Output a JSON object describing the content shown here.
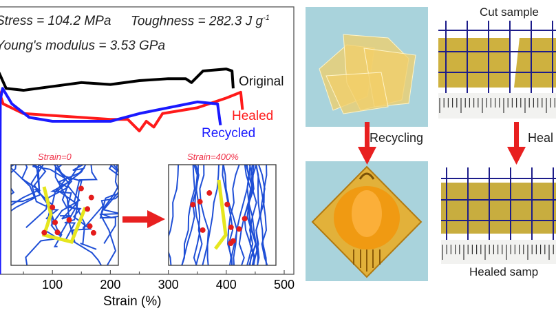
{
  "chart_data": {
    "type": "line",
    "xlabel": "Strain (%)",
    "ylabel": "",
    "xlim": [
      0,
      500
    ],
    "x_ticks": [
      100,
      200,
      300,
      400,
      500
    ],
    "grid": false,
    "annotations": {
      "stress": "Stress = 104.2 MPa",
      "toughness": "Toughness = 282.3 J g",
      "toughness_sup": "-1",
      "modulus": "Young's modulus = 3.53 GPa"
    },
    "series": [
      {
        "name": "Original",
        "color": "#000000",
        "x": [
          0,
          3,
          8,
          20,
          50,
          100,
          150,
          200,
          250,
          300,
          330,
          340,
          360,
          400,
          410,
          412
        ],
        "y": [
          0,
          100,
          104,
          96,
          95,
          97,
          99,
          98,
          100,
          101,
          101,
          99,
          105,
          106,
          105,
          96
        ]
      },
      {
        "name": "Healed",
        "color": "#ff1a1a",
        "x": [
          0,
          3,
          5,
          15,
          50,
          100,
          200,
          230,
          250,
          262,
          275,
          290,
          350,
          400,
          425,
          428
        ],
        "y": [
          0,
          92,
          97,
          88,
          83,
          82,
          80,
          80,
          74,
          79,
          76,
          83,
          86,
          91,
          94,
          85
        ]
      },
      {
        "name": "Recycled",
        "color": "#1a1aff",
        "x": [
          9,
          10,
          14,
          30,
          60,
          100,
          200,
          250,
          300,
          350,
          385,
          390
        ],
        "y": [
          0,
          90,
          96,
          88,
          81,
          79,
          79,
          83,
          86,
          89,
          88,
          77
        ]
      }
    ],
    "insets": [
      {
        "label": "Strain=0"
      },
      {
        "label": "Strain=400%"
      }
    ]
  },
  "photos": {
    "recycling_label": "Recycling",
    "healing_label": "Heal",
    "cut_sample_label": "Cut sample",
    "healed_sample_label": "Healed samp"
  },
  "colors": {
    "arrow": "#e82020",
    "background_photo": "#a9d3dc",
    "film": "#c9a82a"
  }
}
